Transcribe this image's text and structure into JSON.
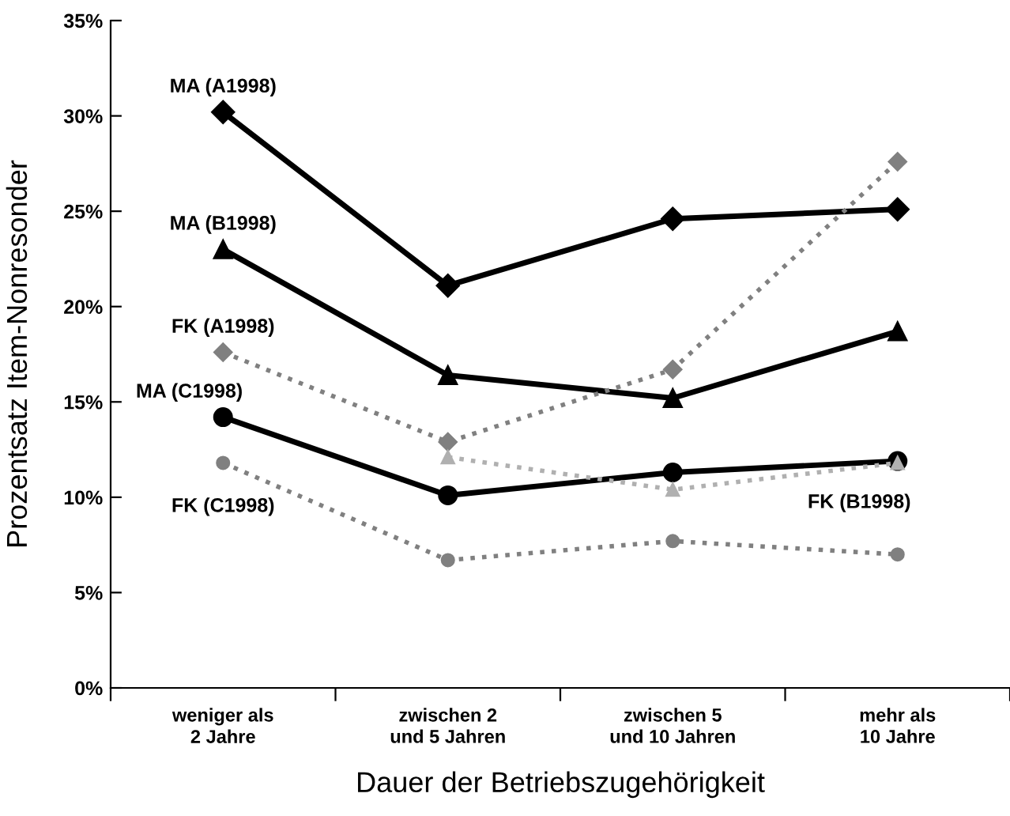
{
  "chart_data": {
    "type": "line",
    "xlabel": "Dauer der Betriebszugehörigkeit",
    "ylabel": "Prozentsatz Item-Nonresonder",
    "categories": [
      "weniger als\n2 Jahre",
      "zwischen 2\nund 5 Jahren",
      "zwischen 5\nund 10 Jahren",
      "mehr als\n10 Jahre"
    ],
    "ylim": [
      0,
      35
    ],
    "yticks": [
      {
        "value": 0,
        "label": "0%"
      },
      {
        "value": 5,
        "label": "5%"
      },
      {
        "value": 10,
        "label": "10%"
      },
      {
        "value": 15,
        "label": "15%"
      },
      {
        "value": 20,
        "label": "20%"
      },
      {
        "value": 25,
        "label": "25%"
      },
      {
        "value": 30,
        "label": "30%"
      },
      {
        "value": 35,
        "label": "35%"
      }
    ],
    "grid": false,
    "legend": false,
    "series": [
      {
        "name": "MA (A1998)",
        "color": "#000000",
        "marker": "diamond",
        "line_style": "solid",
        "values": [
          30.2,
          21.1,
          24.6,
          25.1
        ]
      },
      {
        "name": "MA (B1998)",
        "color": "#000000",
        "marker": "triangle",
        "line_style": "solid",
        "values": [
          23.0,
          16.4,
          15.2,
          18.7
        ]
      },
      {
        "name": "FK (A1998)",
        "color": "#808080",
        "marker": "diamond",
        "line_style": "dotted",
        "values": [
          17.6,
          12.9,
          16.7,
          27.6
        ]
      },
      {
        "name": "MA (C1998)",
        "color": "#000000",
        "marker": "circle",
        "line_style": "solid",
        "values": [
          14.2,
          10.1,
          11.3,
          11.9
        ]
      },
      {
        "name": "FK (B1998)",
        "color": "#b0b0b0",
        "marker": "triangle",
        "line_style": "dotted",
        "values": [
          null,
          12.1,
          10.4,
          11.8
        ]
      },
      {
        "name": "FK (C1998)",
        "color": "#808080",
        "marker": "circle",
        "line_style": "dotted",
        "values": [
          11.8,
          6.7,
          7.7,
          7.0
        ]
      }
    ]
  }
}
